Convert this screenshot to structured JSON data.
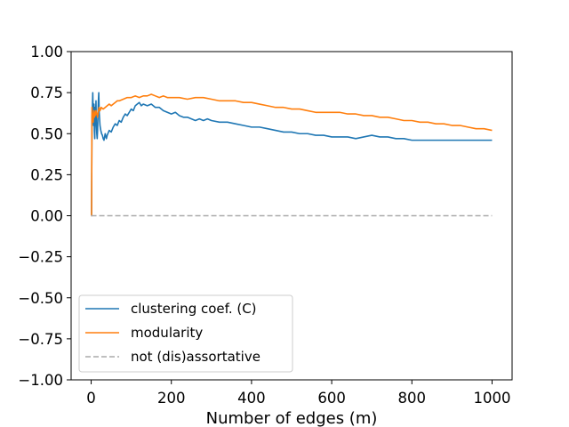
{
  "chart_data": {
    "type": "line",
    "title": "",
    "xlabel": "Number of edges (m)",
    "ylabel": "",
    "xlim": [
      -50,
      1050
    ],
    "ylim": [
      -1.0,
      1.0
    ],
    "x_ticks": [
      0,
      200,
      400,
      600,
      800,
      1000
    ],
    "x_tick_labels": [
      "0",
      "200",
      "400",
      "600",
      "800",
      "1000"
    ],
    "y_ticks": [
      -1.0,
      -0.75,
      -0.5,
      -0.25,
      0.0,
      0.25,
      0.5,
      0.75,
      1.0
    ],
    "y_tick_labels": [
      "−1.00",
      "−0.75",
      "−0.50",
      "−0.25",
      "0.00",
      "0.25",
      "0.50",
      "0.75",
      "1.00"
    ],
    "grid": false,
    "legend_position": "lower-left",
    "series": [
      {
        "name": "clustering coef. (C)",
        "color": "#1f77b4",
        "style": "solid",
        "points": [
          [
            0,
            0.0
          ],
          [
            1,
            0.0
          ],
          [
            2,
            0.6
          ],
          [
            3,
            0.65
          ],
          [
            4,
            0.75
          ],
          [
            5,
            0.62
          ],
          [
            6,
            0.55
          ],
          [
            7,
            0.68
          ],
          [
            8,
            0.52
          ],
          [
            9,
            0.47
          ],
          [
            10,
            0.66
          ],
          [
            11,
            0.6
          ],
          [
            12,
            0.7
          ],
          [
            13,
            0.55
          ],
          [
            14,
            0.5
          ],
          [
            15,
            0.47
          ],
          [
            16,
            0.52
          ],
          [
            17,
            0.62
          ],
          [
            18,
            0.7
          ],
          [
            19,
            0.75
          ],
          [
            20,
            0.63
          ],
          [
            22,
            0.55
          ],
          [
            24,
            0.52
          ],
          [
            26,
            0.5
          ],
          [
            28,
            0.49
          ],
          [
            30,
            0.47
          ],
          [
            32,
            0.46
          ],
          [
            35,
            0.5
          ],
          [
            38,
            0.47
          ],
          [
            40,
            0.49
          ],
          [
            45,
            0.52
          ],
          [
            50,
            0.51
          ],
          [
            55,
            0.54
          ],
          [
            60,
            0.56
          ],
          [
            65,
            0.55
          ],
          [
            70,
            0.58
          ],
          [
            75,
            0.57
          ],
          [
            80,
            0.6
          ],
          [
            85,
            0.62
          ],
          [
            90,
            0.61
          ],
          [
            95,
            0.63
          ],
          [
            100,
            0.65
          ],
          [
            105,
            0.64
          ],
          [
            110,
            0.67
          ],
          [
            115,
            0.68
          ],
          [
            120,
            0.69
          ],
          [
            125,
            0.67
          ],
          [
            130,
            0.68
          ],
          [
            140,
            0.67
          ],
          [
            150,
            0.68
          ],
          [
            160,
            0.66
          ],
          [
            170,
            0.66
          ],
          [
            180,
            0.64
          ],
          [
            190,
            0.63
          ],
          [
            200,
            0.62
          ],
          [
            210,
            0.63
          ],
          [
            220,
            0.61
          ],
          [
            230,
            0.6
          ],
          [
            240,
            0.6
          ],
          [
            250,
            0.59
          ],
          [
            260,
            0.58
          ],
          [
            270,
            0.59
          ],
          [
            280,
            0.58
          ],
          [
            290,
            0.59
          ],
          [
            300,
            0.58
          ],
          [
            320,
            0.57
          ],
          [
            340,
            0.57
          ],
          [
            360,
            0.56
          ],
          [
            380,
            0.55
          ],
          [
            400,
            0.54
          ],
          [
            420,
            0.54
          ],
          [
            440,
            0.53
          ],
          [
            460,
            0.52
          ],
          [
            480,
            0.51
          ],
          [
            500,
            0.51
          ],
          [
            520,
            0.5
          ],
          [
            540,
            0.5
          ],
          [
            560,
            0.49
          ],
          [
            580,
            0.49
          ],
          [
            600,
            0.48
          ],
          [
            620,
            0.48
          ],
          [
            640,
            0.48
          ],
          [
            660,
            0.47
          ],
          [
            680,
            0.48
          ],
          [
            700,
            0.49
          ],
          [
            720,
            0.48
          ],
          [
            740,
            0.48
          ],
          [
            760,
            0.47
          ],
          [
            780,
            0.47
          ],
          [
            800,
            0.46
          ],
          [
            820,
            0.46
          ],
          [
            840,
            0.46
          ],
          [
            860,
            0.46
          ],
          [
            880,
            0.46
          ],
          [
            900,
            0.46
          ],
          [
            920,
            0.46
          ],
          [
            940,
            0.46
          ],
          [
            960,
            0.46
          ],
          [
            980,
            0.46
          ],
          [
            1000,
            0.46
          ]
        ]
      },
      {
        "name": "modularity",
        "color": "#ff7f0e",
        "style": "solid",
        "points": [
          [
            0,
            0.0
          ],
          [
            1,
            0.0
          ],
          [
            2,
            0.66
          ],
          [
            3,
            0.58
          ],
          [
            4,
            0.6
          ],
          [
            5,
            0.57
          ],
          [
            6,
            0.62
          ],
          [
            7,
            0.64
          ],
          [
            8,
            0.6
          ],
          [
            9,
            0.63
          ],
          [
            10,
            0.61
          ],
          [
            12,
            0.64
          ],
          [
            14,
            0.62
          ],
          [
            16,
            0.6
          ],
          [
            18,
            0.64
          ],
          [
            20,
            0.66
          ],
          [
            22,
            0.64
          ],
          [
            25,
            0.66
          ],
          [
            30,
            0.65
          ],
          [
            35,
            0.66
          ],
          [
            40,
            0.67
          ],
          [
            45,
            0.68
          ],
          [
            50,
            0.67
          ],
          [
            55,
            0.68
          ],
          [
            60,
            0.69
          ],
          [
            65,
            0.7
          ],
          [
            70,
            0.7
          ],
          [
            80,
            0.71
          ],
          [
            90,
            0.72
          ],
          [
            100,
            0.72
          ],
          [
            110,
            0.73
          ],
          [
            120,
            0.72
          ],
          [
            130,
            0.73
          ],
          [
            140,
            0.73
          ],
          [
            150,
            0.74
          ],
          [
            160,
            0.73
          ],
          [
            170,
            0.72
          ],
          [
            180,
            0.73
          ],
          [
            190,
            0.72
          ],
          [
            200,
            0.72
          ],
          [
            220,
            0.72
          ],
          [
            240,
            0.71
          ],
          [
            260,
            0.72
          ],
          [
            280,
            0.72
          ],
          [
            300,
            0.71
          ],
          [
            320,
            0.7
          ],
          [
            340,
            0.7
          ],
          [
            360,
            0.7
          ],
          [
            380,
            0.69
          ],
          [
            400,
            0.69
          ],
          [
            420,
            0.68
          ],
          [
            440,
            0.67
          ],
          [
            460,
            0.66
          ],
          [
            480,
            0.66
          ],
          [
            500,
            0.65
          ],
          [
            520,
            0.65
          ],
          [
            540,
            0.64
          ],
          [
            560,
            0.63
          ],
          [
            580,
            0.63
          ],
          [
            600,
            0.63
          ],
          [
            620,
            0.63
          ],
          [
            640,
            0.62
          ],
          [
            660,
            0.62
          ],
          [
            680,
            0.61
          ],
          [
            700,
            0.61
          ],
          [
            720,
            0.6
          ],
          [
            740,
            0.6
          ],
          [
            760,
            0.59
          ],
          [
            780,
            0.58
          ],
          [
            800,
            0.58
          ],
          [
            820,
            0.57
          ],
          [
            840,
            0.57
          ],
          [
            860,
            0.56
          ],
          [
            880,
            0.56
          ],
          [
            900,
            0.55
          ],
          [
            920,
            0.55
          ],
          [
            940,
            0.54
          ],
          [
            960,
            0.53
          ],
          [
            980,
            0.53
          ],
          [
            1000,
            0.52
          ]
        ]
      },
      {
        "name": "not (dis)assortative",
        "color": "#aaaaaa",
        "style": "dashed",
        "points": [
          [
            0,
            0.0
          ],
          [
            1000,
            0.0
          ]
        ]
      }
    ]
  }
}
